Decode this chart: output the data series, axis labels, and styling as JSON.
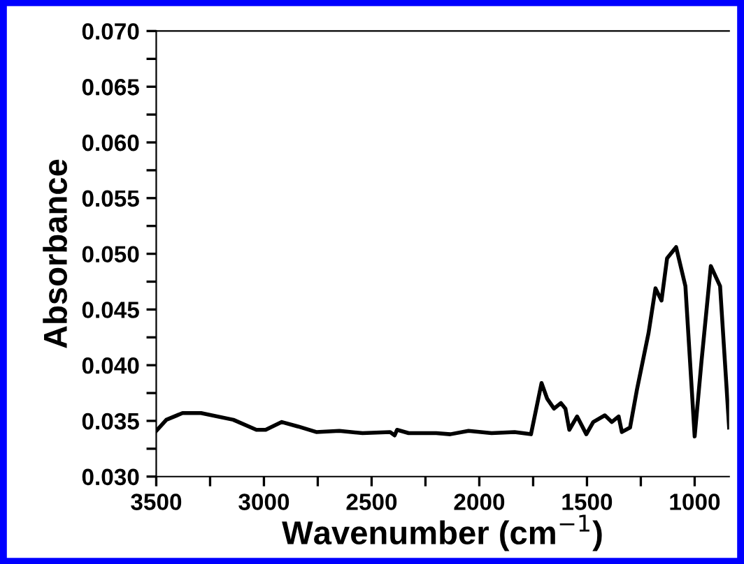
{
  "chart_data": {
    "type": "line",
    "xlabel": "Wavenumber (cm$^{−1}$)",
    "ylabel": "Absorbance",
    "xlim": [
      3500,
      840
    ],
    "ylim": [
      0.03,
      0.07
    ],
    "xticks": [
      3500,
      {
        "value": 3250,
        "label": null
      },
      3000,
      {
        "value": 2750,
        "label": null
      },
      2500,
      {
        "value": 2250,
        "label": null
      },
      2000,
      {
        "value": 1750,
        "label": null
      },
      1500,
      {
        "value": 1250,
        "label": null
      },
      1000
    ],
    "yticks": [
      {
        "value": 0.03,
        "label": "0.030"
      },
      {
        "value": 0.0325,
        "label": null
      },
      {
        "value": 0.035,
        "label": "0.035"
      },
      {
        "value": 0.0375,
        "label": null
      },
      {
        "value": 0.04,
        "label": "0.040"
      },
      {
        "value": 0.0425,
        "label": null
      },
      {
        "value": 0.045,
        "label": "0.045"
      },
      {
        "value": 0.0475,
        "label": null
      },
      {
        "value": 0.05,
        "label": "0.050"
      },
      {
        "value": 0.0525,
        "label": null
      },
      {
        "value": 0.055,
        "label": "0.055"
      },
      {
        "value": 0.0575,
        "label": null
      },
      {
        "value": 0.06,
        "label": "0.060"
      },
      {
        "value": 0.0625,
        "label": null
      },
      {
        "value": 0.065,
        "label": "0.065"
      },
      {
        "value": 0.0675,
        "label": null
      },
      {
        "value": 0.07,
        "label": "0.070"
      }
    ],
    "grid": false,
    "legend": false,
    "marker": "none",
    "line_style": "solid",
    "series": [
      {
        "color": "#000000",
        "x": [
          3500,
          3453,
          3378,
          3292,
          3142,
          3035,
          2992,
          2917,
          2842,
          2757,
          2650,
          2542,
          2414,
          2393,
          2382,
          2328,
          2200,
          2135,
          2050,
          1943,
          1836,
          1760,
          1711,
          1685,
          1653,
          1621,
          1600,
          1582,
          1546,
          1503,
          1471,
          1417,
          1385,
          1353,
          1338,
          1300,
          1268,
          1214,
          1182,
          1154,
          1128,
          1086,
          1043,
          1000,
          968,
          925,
          882,
          840
        ],
        "values": [
          0.0341,
          0.0351,
          0.0357,
          0.0357,
          0.0351,
          0.0342,
          0.0342,
          0.0349,
          0.0345,
          0.034,
          0.0341,
          0.0339,
          0.034,
          0.0337,
          0.0342,
          0.0339,
          0.0339,
          0.0338,
          0.0341,
          0.0339,
          0.034,
          0.0338,
          0.0384,
          0.037,
          0.0361,
          0.0366,
          0.0361,
          0.0342,
          0.0354,
          0.0338,
          0.0349,
          0.0355,
          0.0349,
          0.0354,
          0.034,
          0.0344,
          0.0378,
          0.0429,
          0.0469,
          0.0458,
          0.0496,
          0.0506,
          0.0471,
          0.0336,
          0.0404,
          0.0489,
          0.0471,
          0.0344
        ]
      }
    ]
  }
}
